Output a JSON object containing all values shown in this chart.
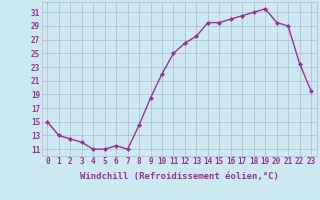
{
  "x": [
    0,
    1,
    2,
    3,
    4,
    5,
    6,
    7,
    8,
    9,
    10,
    11,
    12,
    13,
    14,
    15,
    16,
    17,
    18,
    19,
    20,
    21,
    22,
    23
  ],
  "y": [
    15,
    13,
    12.5,
    12,
    11,
    11,
    11.5,
    11,
    14.5,
    18.5,
    22,
    25,
    26.5,
    27.5,
    29.5,
    29.5,
    30,
    30.5,
    31,
    31.5,
    29.5,
    29,
    23.5,
    19.5
  ],
  "line_color": "#993399",
  "marker": "D",
  "marker_size": 2,
  "xlabel": "Windchill (Refroidissement éolien,°C)",
  "xlabel_fontsize": 6.5,
  "ylabel_ticks": [
    11,
    13,
    15,
    17,
    19,
    21,
    23,
    25,
    27,
    29,
    31
  ],
  "xtick_labels": [
    "0",
    "1",
    "2",
    "3",
    "4",
    "5",
    "6",
    "7",
    "8",
    "9",
    "10",
    "11",
    "12",
    "13",
    "14",
    "15",
    "16",
    "17",
    "18",
    "19",
    "20",
    "21",
    "22",
    "23"
  ],
  "ylim": [
    10.0,
    32.5
  ],
  "xlim": [
    -0.5,
    23.5
  ],
  "bg_color": "#cce8f0",
  "grid_color": "#b0b8cc",
  "tick_fontsize": 5.5,
  "line_width": 1.0
}
